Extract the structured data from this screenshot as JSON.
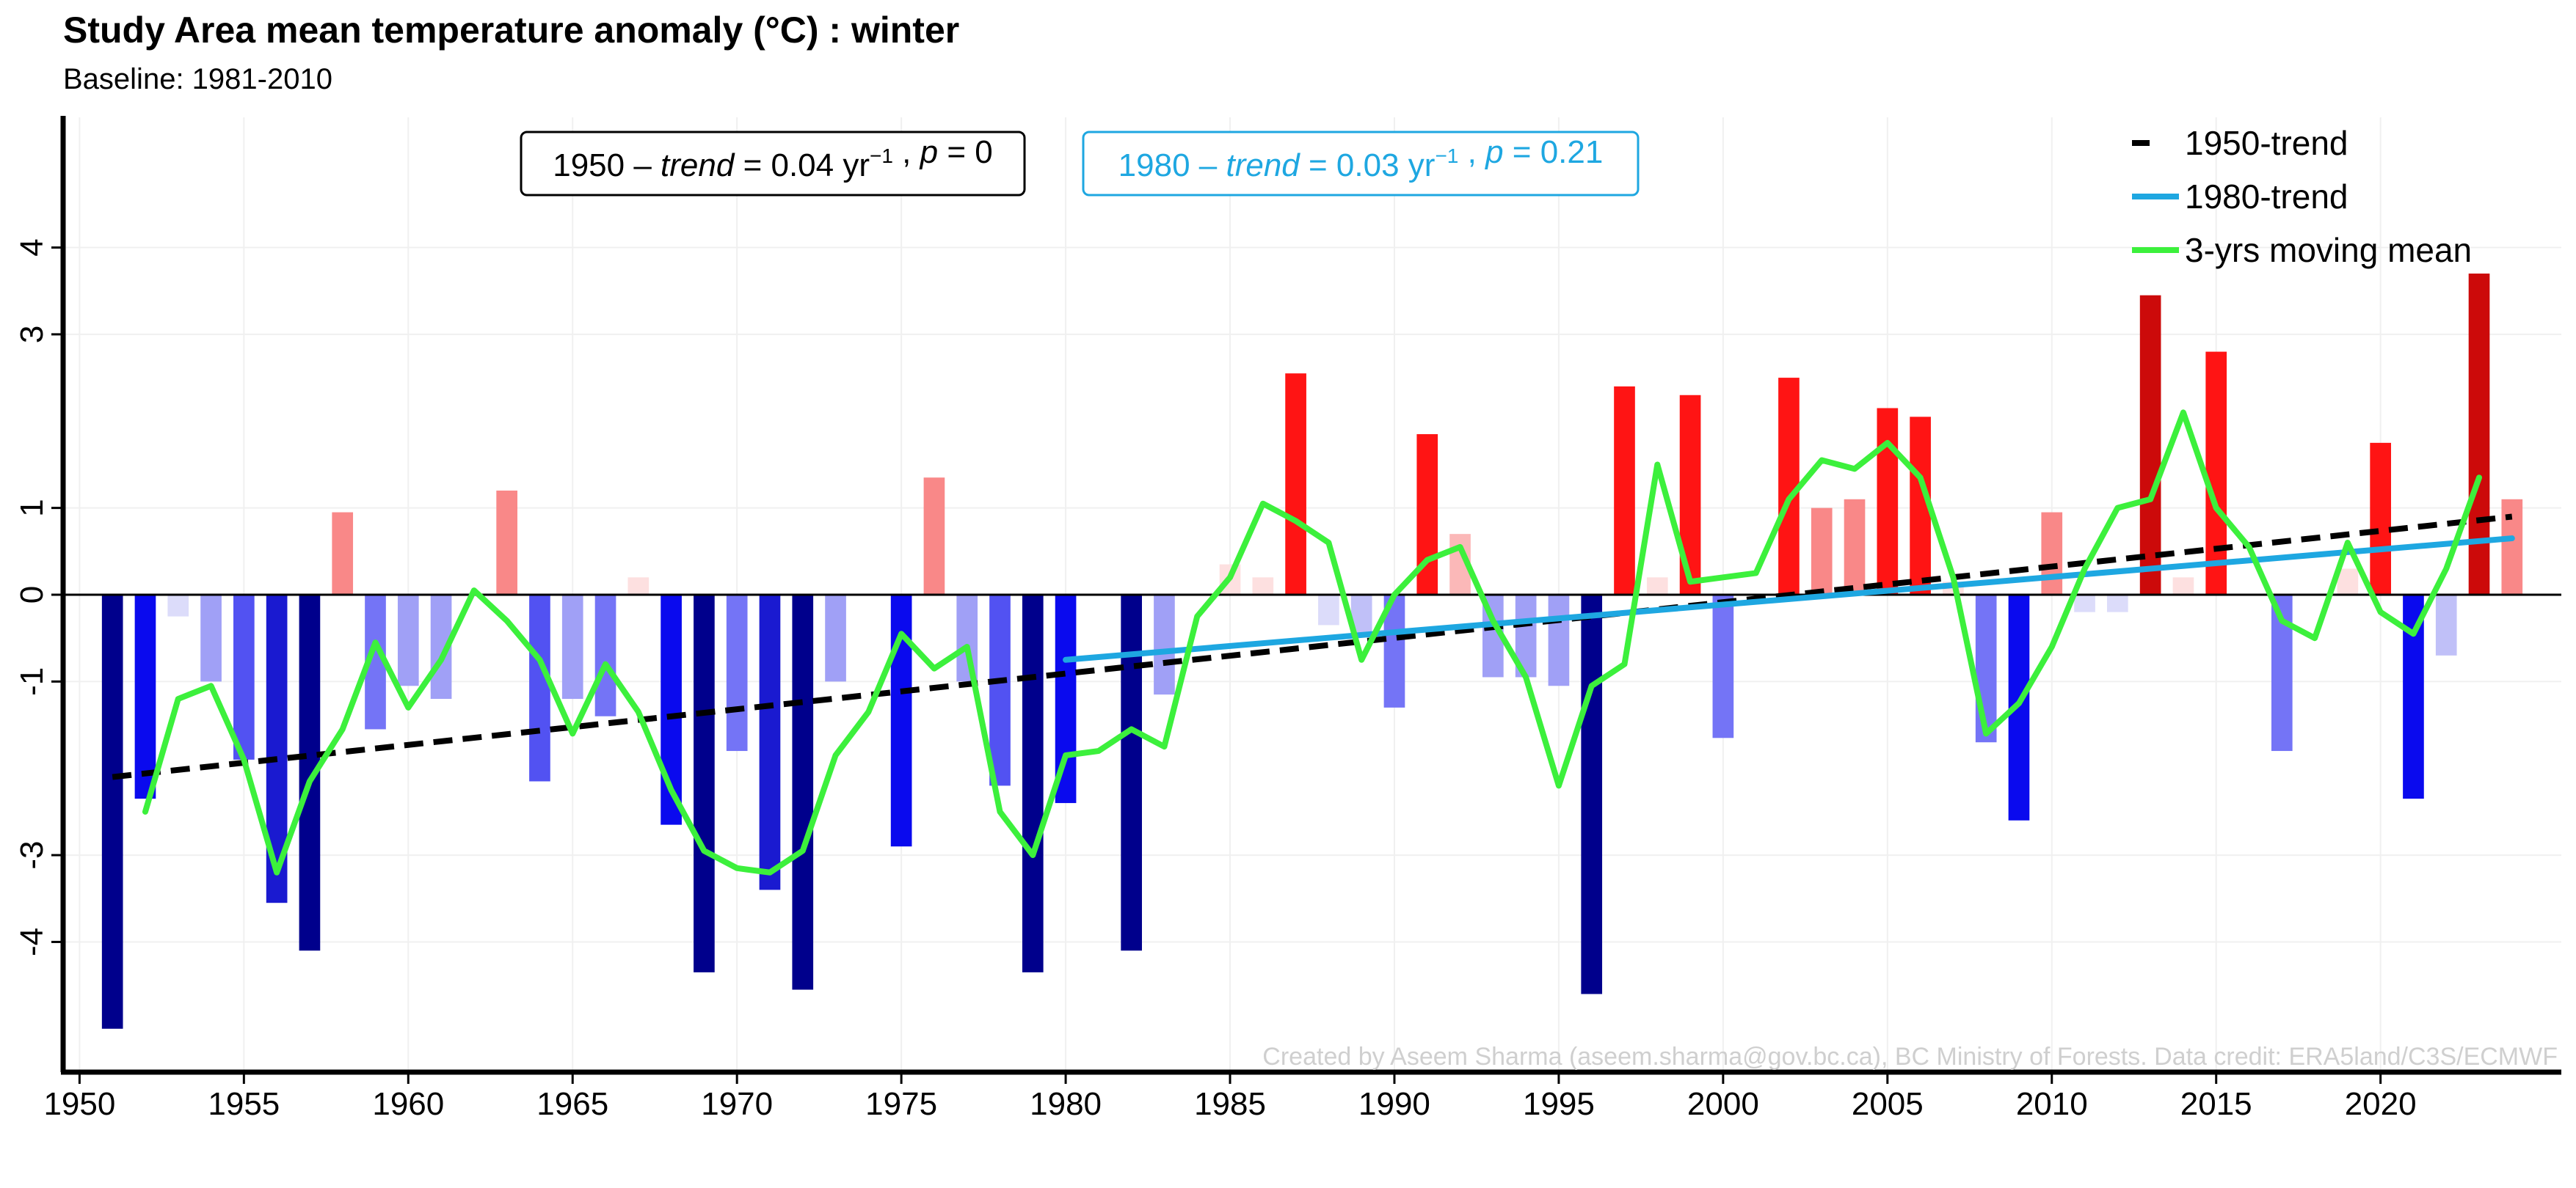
{
  "chart_data": {
    "type": "bar",
    "title": "Study Area mean temperature anomaly (°C) : winter",
    "subtitle": "Baseline: 1981-2010",
    "xlabel": "",
    "ylabel": "",
    "xlim": [
      1949.5,
      2025.5
    ],
    "ylim": [
      -5.5,
      5.5
    ],
    "grid": true,
    "x_ticks": [
      1950,
      1955,
      1960,
      1965,
      1970,
      1975,
      1980,
      1985,
      1990,
      1995,
      2000,
      2005,
      2010,
      2015,
      2020
    ],
    "y_ticks": [
      -4,
      -3,
      -1,
      0,
      1,
      3,
      4
    ],
    "years": [
      1951,
      1952,
      1953,
      1954,
      1955,
      1956,
      1957,
      1958,
      1959,
      1960,
      1961,
      1962,
      1963,
      1964,
      1965,
      1966,
      1967,
      1968,
      1969,
      1970,
      1971,
      1972,
      1973,
      1974,
      1975,
      1976,
      1977,
      1978,
      1979,
      1980,
      1981,
      1982,
      1983,
      1984,
      1985,
      1986,
      1987,
      1988,
      1989,
      1990,
      1991,
      1992,
      1993,
      1994,
      1995,
      1996,
      1997,
      1998,
      1999,
      2000,
      2001,
      2002,
      2003,
      2004,
      2005,
      2006,
      2007,
      2008,
      2009,
      2010,
      2011,
      2012,
      2013,
      2014,
      2015,
      2016,
      2017,
      2018,
      2019,
      2020,
      2021,
      2022,
      2023,
      2024
    ],
    "values": [
      -5.0,
      -2.35,
      -0.25,
      -1.0,
      -1.9,
      -3.55,
      -4.1,
      0.95,
      -1.55,
      -1.05,
      -1.2,
      0,
      1.2,
      -2.15,
      -1.2,
      -1.4,
      0.2,
      -2.65,
      -4.35,
      -1.8,
      -3.4,
      -4.55,
      -1.0,
      0,
      -2.9,
      1.35,
      -1.0,
      -2.2,
      -4.35,
      -2.4,
      0,
      -4.1,
      -1.15,
      0,
      0.35,
      0.2,
      2.55,
      -0.35,
      -0.45,
      -1.3,
      1.85,
      0.7,
      -0.95,
      -0.95,
      -1.05,
      -4.6,
      2.4,
      0.2,
      2.3,
      -1.65,
      0,
      2.5,
      1.0,
      1.1,
      2.15,
      2.05,
      0.15,
      -1.7,
      -2.6,
      0.95,
      -0.2,
      -0.2,
      3.45,
      0.2,
      2.8,
      0,
      -1.8,
      0,
      0.3,
      1.75,
      -2.35,
      -0.7,
      3.7,
      1.1
    ],
    "series": [
      {
        "name": "1950-trend",
        "color": "#000000",
        "style": "dashed",
        "x": [
          1951,
          2024
        ],
        "y": [
          -2.1,
          0.9
        ]
      },
      {
        "name": "1980-trend",
        "color": "#1ea7e1",
        "style": "solid",
        "x": [
          1980,
          2024
        ],
        "y": [
          -0.75,
          0.65
        ]
      },
      {
        "name": "3-yrs moving mean",
        "color": "#3cf03c",
        "style": "solid",
        "x": [
          1952,
          1953,
          1954,
          1955,
          1956,
          1957,
          1958,
          1959,
          1960,
          1961,
          1962,
          1963,
          1964,
          1965,
          1966,
          1967,
          1968,
          1969,
          1970,
          1971,
          1972,
          1973,
          1974,
          1975,
          1976,
          1977,
          1978,
          1979,
          1980,
          1981,
          1982,
          1983,
          1984,
          1985,
          1986,
          1987,
          1988,
          1989,
          1990,
          1991,
          1992,
          1993,
          1994,
          1995,
          1996,
          1997,
          1998,
          1999,
          2000,
          2001,
          2002,
          2003,
          2004,
          2005,
          2006,
          2007,
          2008,
          2009,
          2010,
          2011,
          2012,
          2013,
          2014,
          2015,
          2016,
          2017,
          2018,
          2019,
          2020,
          2021,
          2022,
          2023
        ],
        "y": [
          -2.5,
          -1.2,
          -1.05,
          -1.9,
          -3.2,
          -2.15,
          -1.55,
          -0.55,
          -1.3,
          -0.75,
          0.05,
          -0.3,
          -0.75,
          -1.6,
          -0.8,
          -1.35,
          -2.25,
          -2.95,
          -3.15,
          -3.2,
          -2.95,
          -1.85,
          -1.35,
          -0.45,
          -0.85,
          -0.6,
          -2.5,
          -3.0,
          -1.85,
          -1.8,
          -1.55,
          -1.75,
          -0.25,
          0.2,
          1.05,
          0.85,
          0.6,
          -0.75,
          0,
          0.4,
          0.55,
          -0.3,
          -0.95,
          -2.2,
          -1.05,
          -0.8,
          1.5,
          0.15,
          0.2,
          0.25,
          1.1,
          1.55,
          1.45,
          1.75,
          1.35,
          0.2,
          -1.6,
          -1.25,
          -0.6,
          0.3,
          1.0,
          1.1,
          2.1,
          1.0,
          0.55,
          -0.3,
          -0.5,
          0.6,
          -0.2,
          -0.45,
          0.3,
          1.35
        ]
      }
    ],
    "legend": {
      "position": "top-right",
      "entries": [
        "1950-trend",
        "1980-trend",
        "3-yrs moving mean"
      ]
    },
    "annotations": [
      {
        "prefix": "1950 – ",
        "label": "trend",
        "eq": " = 0.04 yr",
        "sup": "−1",
        "tail": " , ",
        "plabel": "p",
        "pval": " = 0",
        "color": "#000000"
      },
      {
        "prefix": "1980 – ",
        "label": "trend",
        "eq": " = 0.03 yr",
        "sup": "−1",
        "tail": " , ",
        "plabel": "p",
        "pval": " = 0.21",
        "color": "#1ea7e1"
      }
    ],
    "credit": "Created by Aseem Sharma (aseem.sharma@gov.bc.ca), BC Ministry of Forests. Data credit: ERA5land/C3S/ECMWF"
  }
}
